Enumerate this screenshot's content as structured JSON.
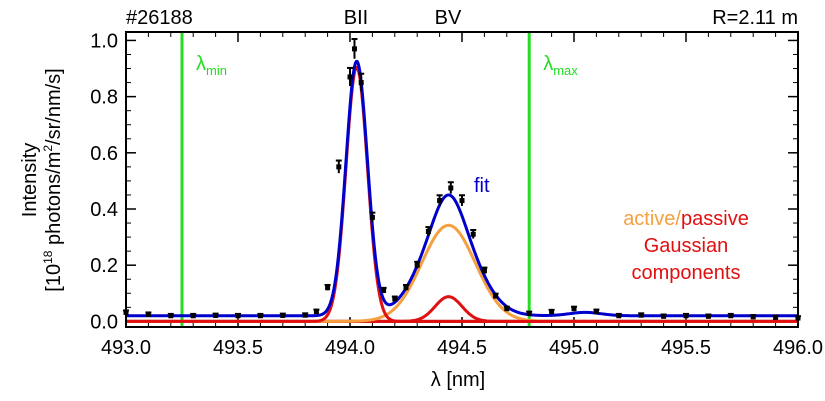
{
  "chart_data": {
    "type": "line",
    "title_left": "#26188",
    "title_right": "R=2.11 m",
    "peak_labels": [
      "BII",
      "BV"
    ],
    "xlabel": "λ [nm]",
    "ylabel_line1": "Intensity",
    "ylabel_line2_parts": [
      "[10",
      "18",
      " photons/m",
      "2",
      "/sr/nm/s]"
    ],
    "xlim": [
      493.0,
      496.0
    ],
    "ylim": [
      -0.02,
      1.03
    ],
    "xticks": [
      493.0,
      493.5,
      494.0,
      494.5,
      495.0,
      495.5,
      496.0
    ],
    "xtick_labels": [
      "493.0",
      "493.5",
      "494.0",
      "494.5",
      "495.0",
      "495.5",
      "496.0"
    ],
    "yticks": [
      0.0,
      0.2,
      0.4,
      0.6,
      0.8,
      1.0
    ],
    "ytick_labels": [
      "0.0",
      "0.2",
      "0.4",
      "0.6",
      "0.8",
      "1.0"
    ],
    "vlines": [
      {
        "x": 493.25,
        "label_main": "λ",
        "label_sub": "min",
        "color": "#22dd22"
      },
      {
        "x": 494.8,
        "label_main": "λ",
        "label_sub": "max",
        "color": "#22dd22"
      }
    ],
    "annotations": {
      "fit": "fit",
      "active": "active/",
      "passive": "passive",
      "gaussian": "Gaussian",
      "components": "components"
    },
    "colors": {
      "data": "#000000",
      "fit": "#0000cc",
      "active": "#f5a040",
      "passive": "#e01010",
      "baseline": "#7a0000"
    },
    "components": {
      "bii": {
        "center": 494.03,
        "amplitude": 0.905,
        "sigma": 0.048
      },
      "bv_active": {
        "center": 494.44,
        "amplitude": 0.342,
        "sigma": 0.12
      },
      "bv_passive": {
        "center": 494.44,
        "amplitude": 0.088,
        "sigma": 0.06
      },
      "background": 0.02
    },
    "series": [
      {
        "name": "data",
        "x": [
          493.0,
          493.1,
          493.2,
          493.3,
          493.4,
          493.5,
          493.6,
          493.7,
          493.8,
          493.85,
          493.9,
          493.95,
          494.0,
          494.02,
          494.05,
          494.1,
          494.15,
          494.2,
          494.25,
          494.3,
          494.35,
          494.4,
          494.45,
          494.5,
          494.55,
          494.6,
          494.65,
          494.7,
          494.8,
          494.9,
          495.0,
          495.1,
          495.2,
          495.3,
          495.4,
          495.5,
          495.6,
          495.7,
          495.8,
          495.9,
          496.0
        ],
        "y": [
          0.032,
          0.025,
          0.02,
          0.02,
          0.021,
          0.02,
          0.02,
          0.021,
          0.022,
          0.035,
          0.12,
          0.55,
          0.87,
          0.97,
          0.85,
          0.37,
          0.11,
          0.08,
          0.12,
          0.2,
          0.32,
          0.43,
          0.475,
          0.43,
          0.31,
          0.18,
          0.09,
          0.045,
          0.028,
          0.034,
          0.045,
          0.035,
          0.02,
          0.022,
          0.018,
          0.02,
          0.018,
          0.02,
          0.016,
          0.014,
          0.012
        ]
      }
    ]
  }
}
